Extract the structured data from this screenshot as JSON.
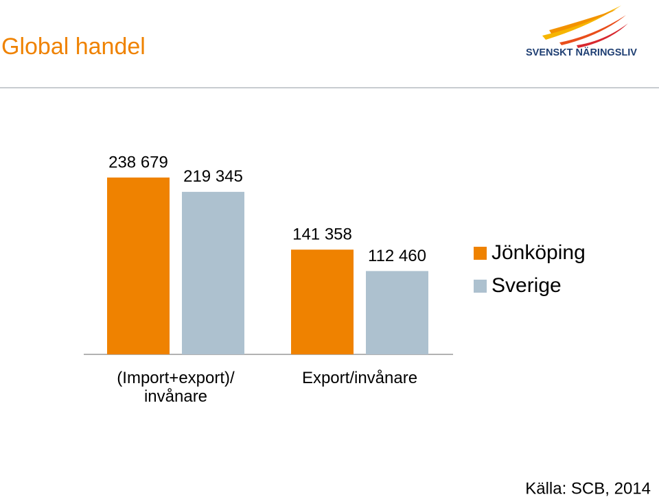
{
  "chart_data": {
    "type": "bar",
    "title": "Global handel",
    "logo": "SVENSKT NÄRINGSLIV",
    "source": "Källa: SCB, 2014",
    "categories": [
      "(Import+export)/\ninvånare",
      "Export/invånare"
    ],
    "series": [
      {
        "name": "Jönköping",
        "color": "#ef8200",
        "values": [
          238679,
          141358
        ],
        "value_labels": [
          "238 679",
          "141 358"
        ]
      },
      {
        "name": "Sverige",
        "color": "#adc1cf",
        "values": [
          219345,
          112460
        ],
        "value_labels": [
          "219 345",
          "112 460"
        ]
      }
    ],
    "legend": "right"
  }
}
